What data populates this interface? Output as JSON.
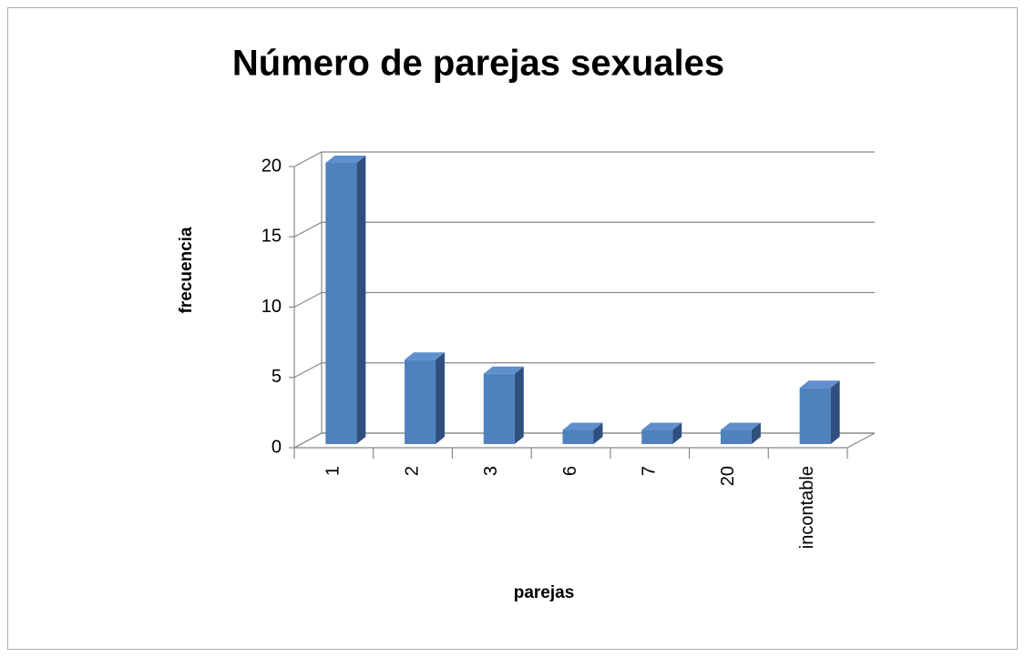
{
  "chart_data": {
    "type": "bar3d",
    "title": "Número de parejas sexuales",
    "x_label": "parejas",
    "y_label": "frecuencia",
    "categories": [
      "1",
      "2",
      "3",
      "6",
      "7",
      "20",
      "incontable"
    ],
    "values": [
      20,
      6,
      5,
      1,
      1,
      1,
      4
    ],
    "color": "#4f81bd",
    "ylim": [
      0,
      20
    ],
    "yticks": [
      0,
      5,
      10,
      15,
      20
    ],
    "grid": true
  }
}
